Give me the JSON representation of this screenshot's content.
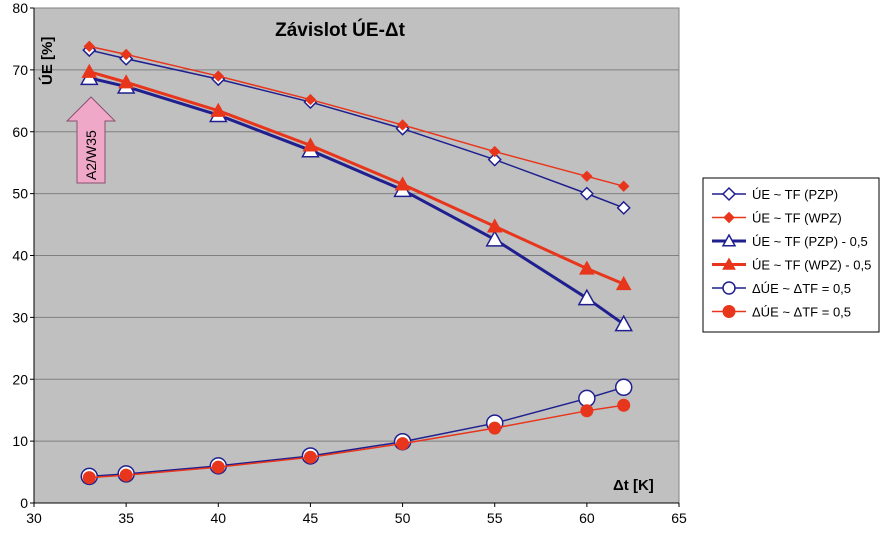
{
  "chart_data": {
    "type": "line",
    "title": "Závislot ÚE-Δt",
    "xlabel": "Δt [K]",
    "ylabel": "ÚE [%]",
    "xlim": [
      30,
      65
    ],
    "ylim": [
      0,
      80
    ],
    "xticks": [
      "30",
      "35",
      "40",
      "45",
      "50",
      "55",
      "60",
      "65"
    ],
    "yticks": [
      "0",
      "10",
      "20",
      "30",
      "40",
      "50",
      "60",
      "70",
      "80"
    ],
    "grid": true,
    "legend_position": "right",
    "annotation": "A2/W35",
    "series": [
      {
        "name": "ÚE ~ TF (PZP)",
        "color": "#1f1f8f",
        "marker": "diamond-open",
        "x": [
          33,
          35,
          40,
          45,
          50,
          55,
          60,
          62
        ],
        "y": [
          73.2,
          71.8,
          68.5,
          64.8,
          60.5,
          55.5,
          50.0,
          47.7
        ]
      },
      {
        "name": "ÚE ~ TF (WPZ)",
        "color": "#e8361c",
        "marker": "diamond-filled",
        "x": [
          33,
          35,
          40,
          45,
          50,
          55,
          60,
          62
        ],
        "y": [
          73.8,
          72.5,
          69.0,
          65.2,
          61.1,
          56.8,
          52.8,
          51.2
        ]
      },
      {
        "name": "ÚE ~ TF (PZP) - 0,5",
        "color": "#1f1f8f",
        "marker": "triangle-open",
        "x": [
          33,
          35,
          40,
          45,
          50,
          55,
          60,
          62
        ],
        "y": [
          68.7,
          67.3,
          62.7,
          57.0,
          50.6,
          42.6,
          33.1,
          28.9
        ]
      },
      {
        "name": "ÚE ~ TF (WPZ) - 0,5",
        "color": "#e8361c",
        "marker": "triangle-filled",
        "x": [
          33,
          35,
          40,
          45,
          50,
          55,
          60,
          62
        ],
        "y": [
          69.7,
          68.0,
          63.4,
          57.8,
          51.5,
          44.7,
          37.9,
          35.4
        ]
      },
      {
        "name": "ΔÚE ~ ΔTF = 0,5",
        "color": "#1f1f8f",
        "marker": "circle-open",
        "x": [
          33,
          35,
          40,
          45,
          50,
          55,
          60,
          62
        ],
        "y": [
          4.3,
          4.7,
          6.0,
          7.6,
          9.9,
          12.9,
          16.9,
          18.7
        ]
      },
      {
        "name": "ΔÚE ~ ΔTF = 0,5",
        "color": "#e8361c",
        "marker": "circle-filled",
        "x": [
          33,
          35,
          40,
          45,
          50,
          55,
          60,
          62
        ],
        "y": [
          4.1,
          4.5,
          5.8,
          7.4,
          9.6,
          12.1,
          14.9,
          15.8
        ]
      }
    ]
  },
  "colors": {
    "plot_background": "#c0c0c0",
    "gridline": "#808080",
    "arrow_fill": "#f0a8c8"
  }
}
